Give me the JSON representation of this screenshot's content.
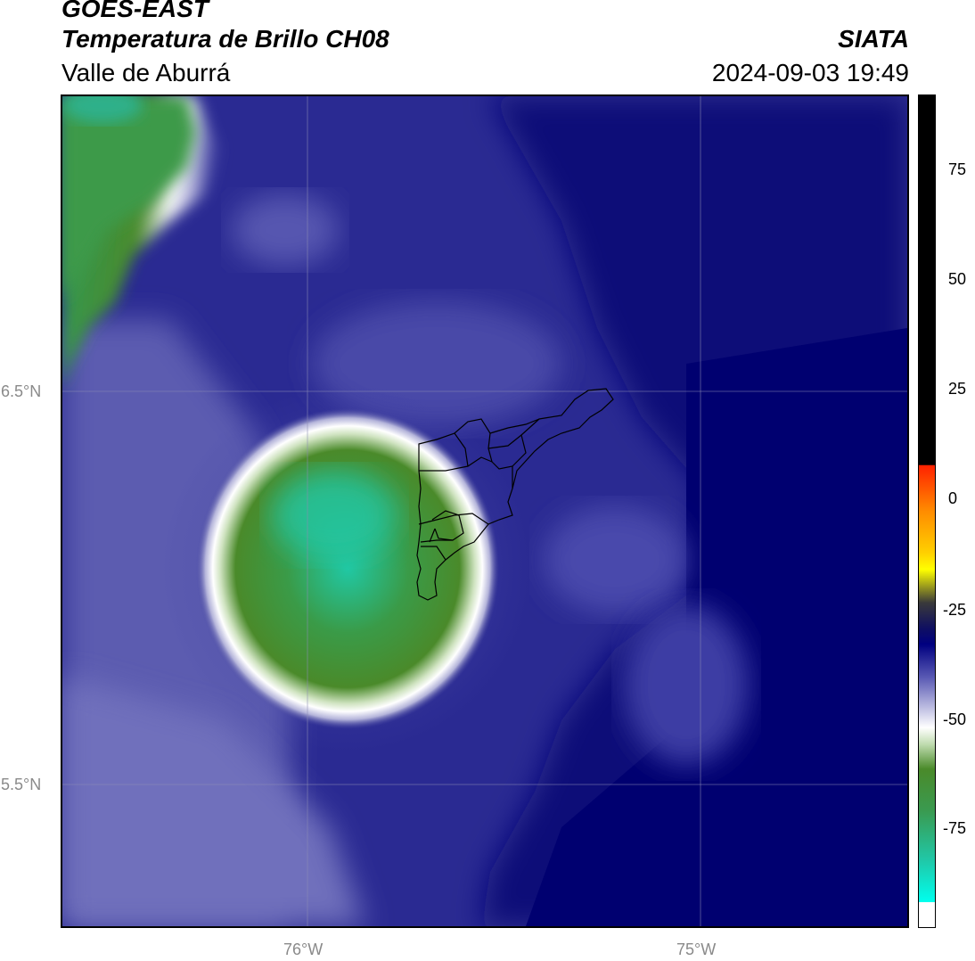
{
  "header": {
    "satellite": "GOES-EAST",
    "product": "Temperatura de Brillo CH08",
    "region": "Valle de Aburrá",
    "organization": "SIATA",
    "timestamp": "2024-09-03 19:49"
  },
  "map": {
    "lat_labels": [
      "6.5°N",
      "5.5°N"
    ],
    "lon_labels": [
      "76°W",
      "75°W"
    ]
  },
  "colorbar": {
    "tick_labels": [
      "75",
      "50",
      "25",
      "0",
      "-25",
      "-50",
      "-75"
    ],
    "colors": {
      "hot": "#000000",
      "warm_red": "#ff2a00",
      "orange": "#ff9900",
      "yellow": "#ffff00",
      "dark": "#1a1a1a",
      "navy": "#000080",
      "lavender": "#8080c0",
      "white": "#ffffff",
      "green": "#3c8c28",
      "teal": "#20d0b0",
      "cyan": "#00ffee"
    }
  }
}
